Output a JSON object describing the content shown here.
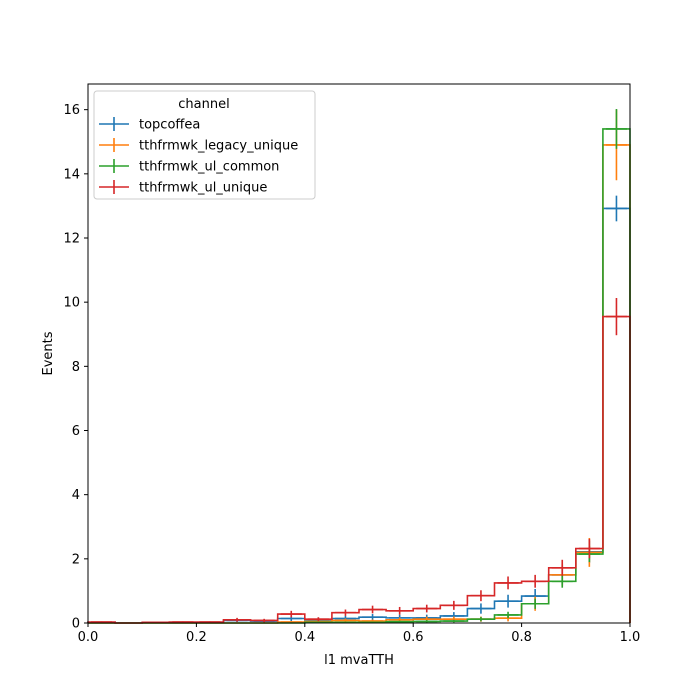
{
  "chart_data": {
    "type": "histogram-step",
    "xlabel": "l1 mvaTTH",
    "ylabel": "Events",
    "xlim": [
      0,
      1
    ],
    "ylim": [
      0,
      16.8
    ],
    "xticks": [
      "0.0",
      "0.2",
      "0.4",
      "0.6",
      "0.8",
      "1.0"
    ],
    "xtick_values": [
      0,
      0.2,
      0.4,
      0.6,
      0.8,
      1.0
    ],
    "yticks": [
      "0",
      "2",
      "4",
      "6",
      "8",
      "10",
      "12",
      "14",
      "16"
    ],
    "ytick_values": [
      0,
      2,
      4,
      6,
      8,
      10,
      12,
      14,
      16
    ],
    "bin_edges": [
      0.0,
      0.05,
      0.1,
      0.15,
      0.2,
      0.25,
      0.3,
      0.35,
      0.4,
      0.45,
      0.5,
      0.55,
      0.6,
      0.65,
      0.7,
      0.75,
      0.8,
      0.85,
      0.9,
      0.95,
      1.0
    ],
    "legend": {
      "title": "channel",
      "position": "upper-left"
    },
    "grid": false,
    "series": [
      {
        "name": "topcoffea",
        "color": "#1f77b4",
        "values": [
          0.02,
          0.0,
          0.01,
          0.01,
          0.02,
          0.08,
          0.06,
          0.14,
          0.1,
          0.14,
          0.18,
          0.16,
          0.16,
          0.22,
          0.45,
          0.68,
          0.84,
          1.5,
          2.22,
          12.92
        ],
        "errors": [
          0.02,
          0.0,
          0.01,
          0.01,
          0.02,
          0.05,
          0.05,
          0.08,
          0.07,
          0.08,
          0.1,
          0.1,
          0.1,
          0.12,
          0.16,
          0.2,
          0.22,
          0.3,
          0.35,
          0.4
        ]
      },
      {
        "name": "tthfrmwk_legacy_unique",
        "color": "#ff7f0e",
        "values": [
          0.0,
          0.0,
          0.0,
          0.0,
          0.0,
          0.0,
          0.0,
          0.03,
          0.05,
          0.08,
          0.06,
          0.1,
          0.12,
          0.12,
          0.12,
          0.15,
          0.6,
          1.5,
          2.2,
          14.9
        ],
        "errors": [
          0.0,
          0.0,
          0.0,
          0.0,
          0.0,
          0.0,
          0.0,
          0.03,
          0.05,
          0.06,
          0.05,
          0.07,
          0.08,
          0.08,
          0.08,
          0.1,
          0.22,
          0.35,
          0.45,
          1.1
        ]
      },
      {
        "name": "tthfrmwk_ul_common",
        "color": "#2ca02c",
        "values": [
          0.0,
          0.0,
          0.0,
          0.0,
          0.0,
          0.0,
          0.0,
          0.0,
          0.02,
          0.02,
          0.02,
          0.04,
          0.05,
          0.06,
          0.12,
          0.25,
          0.6,
          1.3,
          2.15,
          15.4
        ],
        "errors": [
          0.0,
          0.0,
          0.0,
          0.0,
          0.0,
          0.0,
          0.0,
          0.0,
          0.02,
          0.02,
          0.02,
          0.03,
          0.04,
          0.04,
          0.07,
          0.1,
          0.16,
          0.2,
          0.25,
          0.62
        ]
      },
      {
        "name": "tthfrmwk_ul_unique",
        "color": "#d62728",
        "values": [
          0.03,
          0.0,
          0.02,
          0.03,
          0.03,
          0.1,
          0.08,
          0.28,
          0.12,
          0.32,
          0.42,
          0.38,
          0.45,
          0.55,
          0.85,
          1.25,
          1.3,
          1.72,
          2.32,
          9.55
        ],
        "errors": [
          0.02,
          0.0,
          0.02,
          0.02,
          0.02,
          0.06,
          0.05,
          0.1,
          0.06,
          0.1,
          0.12,
          0.12,
          0.12,
          0.14,
          0.17,
          0.2,
          0.2,
          0.25,
          0.3,
          0.58
        ]
      }
    ]
  }
}
